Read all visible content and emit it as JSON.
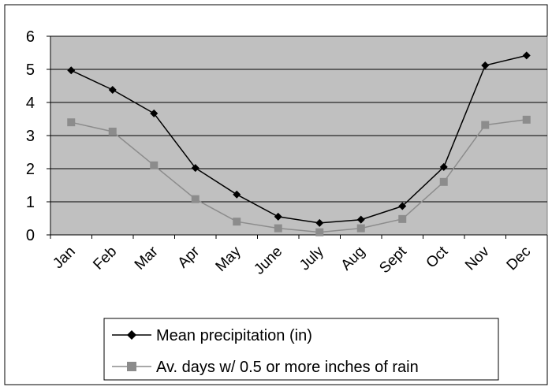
{
  "chart_data": {
    "type": "line",
    "categories": [
      "Jan",
      "Feb",
      "Mar",
      "Apr",
      "May",
      "June",
      "July",
      "Aug",
      "Sept",
      "Oct",
      "Nov",
      "Dec"
    ],
    "series": [
      {
        "name": "Mean precipitation (in)",
        "values": [
          4.97,
          4.38,
          3.67,
          2.02,
          1.22,
          0.55,
          0.36,
          0.46,
          0.87,
          2.05,
          5.12,
          5.42
        ],
        "color": "#000000",
        "marker": "diamond"
      },
      {
        "name": "Av. days w/ 0.5 or more inches of rain",
        "values": [
          3.4,
          3.12,
          2.1,
          1.08,
          0.4,
          0.2,
          0.08,
          0.2,
          0.48,
          1.6,
          3.32,
          3.48
        ],
        "color": "#8c8c8c",
        "marker": "square"
      }
    ],
    "ylim": [
      0,
      6
    ],
    "yticks": [
      "0",
      "1",
      "2",
      "3",
      "4",
      "5",
      "6"
    ],
    "grid": true,
    "plot_background": "#c0c0c0",
    "legend_position": "bottom"
  }
}
